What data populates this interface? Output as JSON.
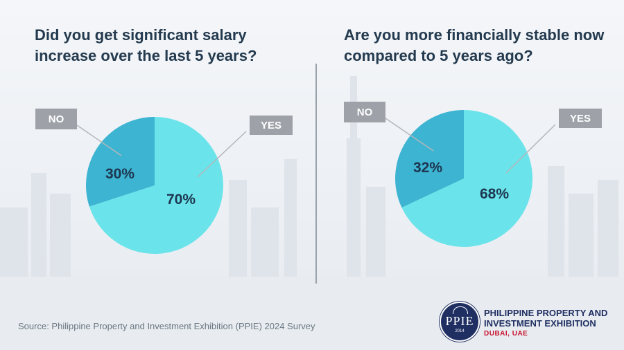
{
  "charts": [
    {
      "title": "Did you get significant salary increase over the last 5 years?"
    },
    {
      "title": "Are you more financially stable now compared to 5 years ago?"
    }
  ],
  "chart_data": [
    {
      "type": "pie",
      "title": "Did you get significant salary increase over the last 5 years?",
      "slices": [
        {
          "label": "NO",
          "value": 30,
          "value_label": "30%",
          "color": "#3db4d1"
        },
        {
          "label": "YES",
          "value": 70,
          "value_label": "70%",
          "color": "#6ae4ea"
        }
      ]
    },
    {
      "type": "pie",
      "title": "Are you more financially stable now compared to 5 years ago?",
      "slices": [
        {
          "label": "NO",
          "value": 32,
          "value_label": "32%",
          "color": "#3db4d1"
        },
        {
          "label": "YES",
          "value": 68,
          "value_label": "68%",
          "color": "#6ae4ea"
        }
      ]
    }
  ],
  "source": "Source: Philippine Property and Investment Exhibition (PPIE) 2024 Survey",
  "logo": {
    "mark": "PPIE",
    "year": "2014",
    "name_line1": "PHILIPPINE PROPERTY AND",
    "name_line2": "INVESTMENT EXHIBITION",
    "location": "DUBAI, UAE"
  },
  "colors": {
    "title": "#243a4e",
    "value_label": "#1d3550",
    "callout_box": "#9ea2a8",
    "leader_line": "#b3b7bc"
  }
}
